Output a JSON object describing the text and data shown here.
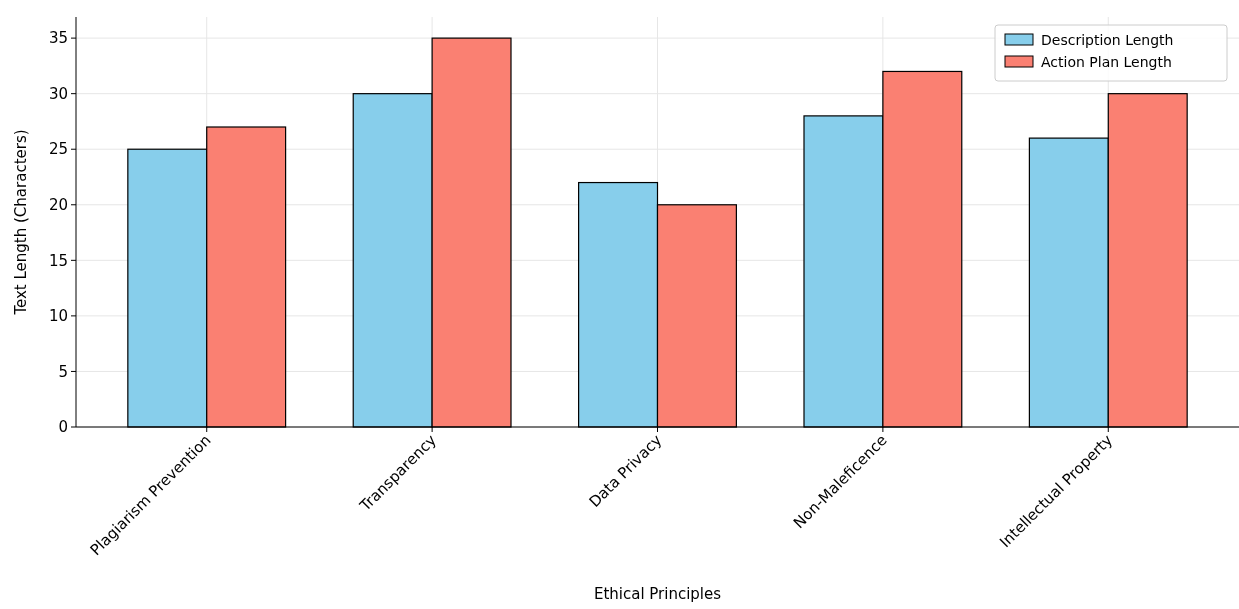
{
  "chart_data": {
    "type": "bar",
    "xlabel": "Ethical Principles",
    "ylabel": "Text Length (Characters)",
    "categories": [
      "Plagiarism Prevention",
      "Transparency",
      "Data Privacy",
      "Non-Maleficence",
      "Intellectual Property"
    ],
    "series": [
      {
        "name": "Description Length",
        "color": "#87ceeb",
        "values": [
          25,
          30,
          22,
          28,
          26
        ]
      },
      {
        "name": "Action Plan Length",
        "color": "#fa8072",
        "values": [
          27,
          35,
          20,
          32,
          30
        ]
      }
    ],
    "ylim": [
      0,
      36.9
    ],
    "yticks": [
      0,
      5,
      10,
      15,
      20,
      25,
      30,
      35
    ],
    "grid": true,
    "legend": "top right"
  }
}
